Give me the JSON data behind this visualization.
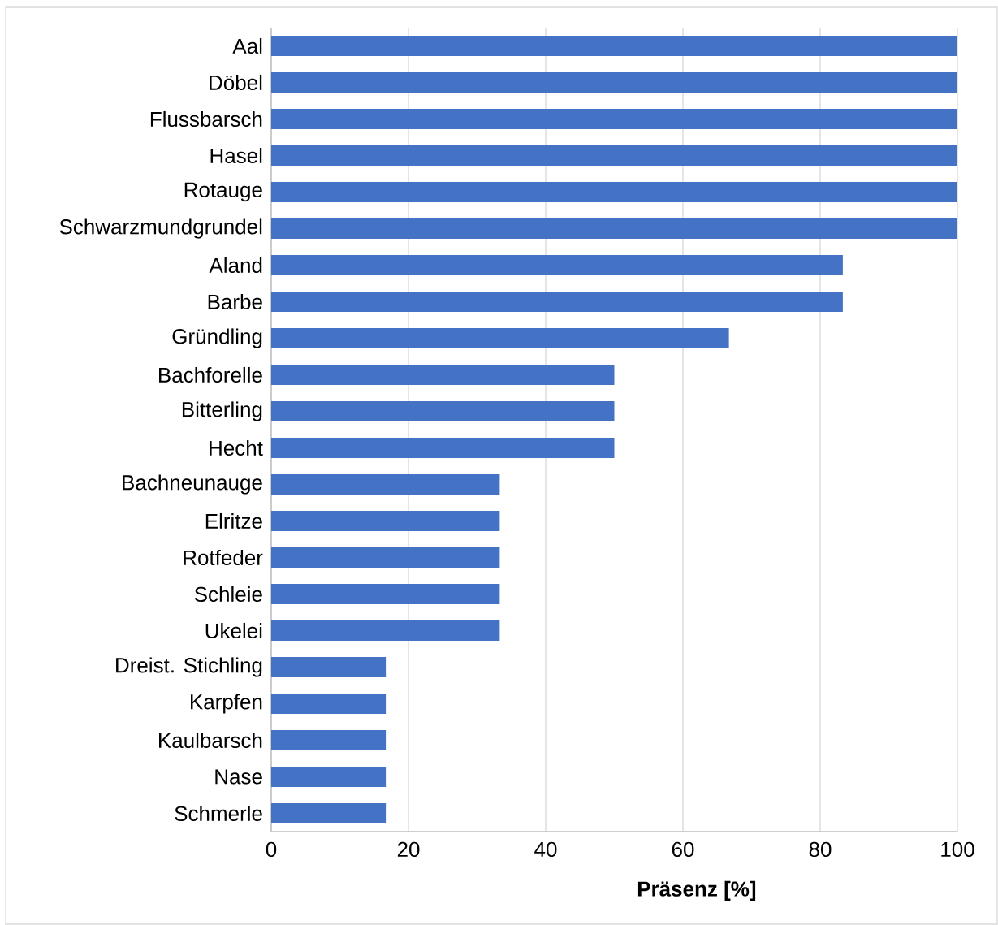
{
  "chart_data": {
    "type": "bar",
    "orientation": "horizontal",
    "xlabel": "Präsenz [%]",
    "categories": [
      "Aal",
      "Döbel",
      "Flussbarsch",
      "Hasel",
      "Rotauge",
      "Schwarzmundgrundel",
      "Aland",
      "Barbe",
      "Gründling",
      "Bachforelle",
      "Bitterling",
      "Hecht",
      "Bachneunauge",
      "Elritze",
      "Rotfeder",
      "Schleie",
      "Ukelei",
      "Dreist. Stichling",
      "Karpfen",
      "Kaulbarsch",
      "Nase",
      "Schmerle"
    ],
    "values": [
      100,
      100,
      100,
      100,
      100,
      100,
      83.3,
      83.3,
      66.7,
      50,
      50,
      50,
      33.3,
      33.3,
      33.3,
      33.3,
      33.3,
      16.7,
      16.7,
      16.7,
      16.7,
      16.7
    ],
    "color": "#4472c4",
    "xlim": [
      0,
      100
    ],
    "xticks": [
      0,
      20,
      40,
      60,
      80,
      100
    ],
    "grid": "x"
  }
}
